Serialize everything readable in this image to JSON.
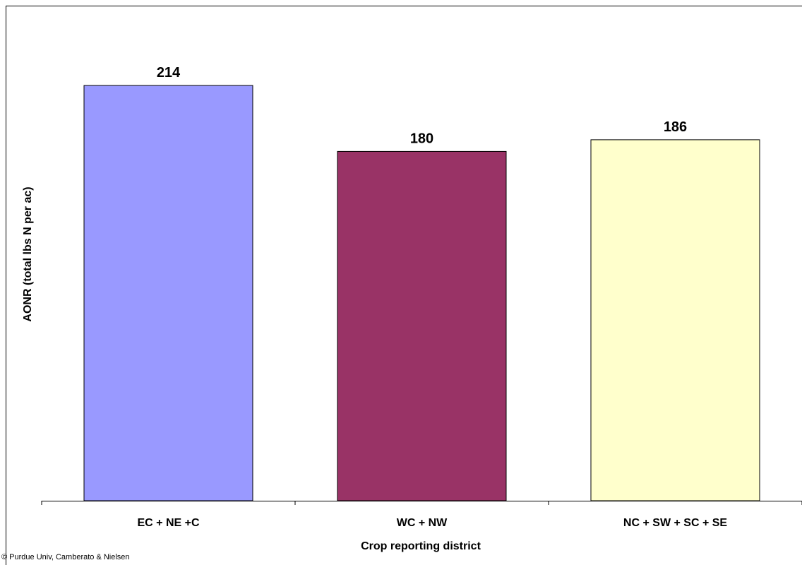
{
  "chart_data": {
    "type": "bar",
    "categories": [
      "EC + NE +C",
      "WC + NW",
      "NC + SW + SC + SE"
    ],
    "values": [
      214,
      180,
      186
    ],
    "data_labels": [
      "214",
      "180",
      "186"
    ],
    "bar_colors": [
      "#9999ff",
      "#993366",
      "#ffffcc"
    ],
    "xlabel": "Crop reporting district",
    "ylabel": "AONR (total lbs N per ac)",
    "ylim": [
      0,
      230
    ],
    "grid": false,
    "legend": "none",
    "y_tick_labels": "none"
  },
  "footer": {
    "copyright": "© Purdue Univ, Camberato & Nielsen"
  }
}
